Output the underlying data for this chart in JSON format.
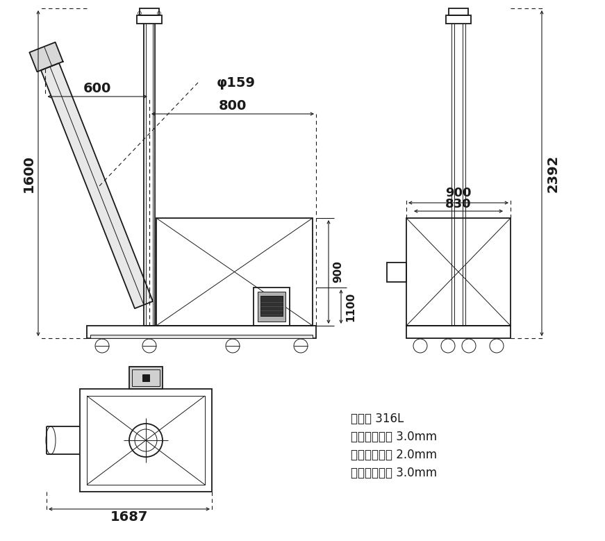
{
  "bg_color": "#ffffff",
  "line_color": "#1a1a1a",
  "dim_color": "#1a1a1a",
  "text_color": "#1a1a1a",
  "specs": [
    "材质： 316L",
    "螺旋管壁厚： 3.0mm",
    "储料仓板厚： 2.0mm",
    "螺旋叶片厚： 3.0mm"
  ],
  "dims": {
    "phi159": "φ159",
    "d600": "600",
    "d800": "800",
    "d1600": "1600",
    "d900a": "900",
    "d1100": "1100",
    "d900b": "900",
    "d830": "830",
    "d2392": "2392",
    "d1687": "1687"
  },
  "lw_main": 1.3,
  "lw_thin": 0.7,
  "lw_dim": 0.8
}
